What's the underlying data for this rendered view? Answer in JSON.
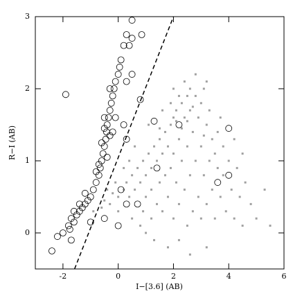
{
  "chart_data": {
    "type": "scatter",
    "xlabel": "I−[3.6] (AB)",
    "ylabel": "R−I (AB)",
    "xlim": [
      -3,
      6
    ],
    "ylim": [
      -0.5,
      3
    ],
    "xticks": [
      -2,
      0,
      2,
      4,
      6
    ],
    "yticks": [
      0,
      1,
      2,
      3
    ],
    "series": [
      {
        "marker": "dot",
        "color": "#a0a0a0",
        "x": [
          -0.9,
          -0.6,
          -0.5,
          -0.3,
          -0.2,
          0,
          0,
          0.2,
          0.3,
          0.4,
          0.5,
          0.6,
          0.7,
          0.8,
          0.9,
          1.0,
          1.0,
          1.1,
          1.2,
          1.2,
          1.3,
          1.4,
          1.4,
          1.5,
          1.5,
          1.6,
          1.6,
          1.7,
          1.7,
          1.8,
          1.8,
          1.9,
          1.9,
          2.0,
          2.0,
          2.0,
          2.1,
          2.1,
          2.2,
          2.2,
          2.3,
          2.3,
          2.4,
          2.4,
          2.5,
          2.5,
          2.5,
          2.6,
          2.6,
          2.7,
          2.7,
          2.8,
          2.8,
          2.9,
          2.9,
          3.0,
          3.0,
          3.0,
          3.1,
          3.1,
          3.2,
          3.2,
          3.3,
          3.3,
          3.4,
          3.4,
          3.5,
          3.5,
          3.6,
          3.6,
          3.7,
          3.8,
          3.8,
          3.9,
          4.0,
          4.1,
          4.2,
          4.3,
          4.4,
          4.5,
          4.6,
          4.8,
          5.0,
          5.5,
          5.3,
          0.5,
          0.8,
          1.0,
          1.3,
          1.8,
          2.2,
          2.6,
          3.2,
          0.2,
          0.6,
          1.1,
          1.6,
          2.0,
          2.4,
          2.8,
          3.2,
          2.2,
          2.6,
          1.9,
          3.1,
          2.3,
          1.5,
          0.4,
          -0.1,
          -0.4,
          2.1,
          2.5,
          2.7,
          4.2,
          4.5,
          0.9,
          1.2,
          3.7
        ],
        "values": [
          0.3,
          0.35,
          0.45,
          0.4,
          0.55,
          0.5,
          0.3,
          0.6,
          0.7,
          0.5,
          0.8,
          0.6,
          0.9,
          0.7,
          1.0,
          0.8,
          0.5,
          1.1,
          0.9,
          0.6,
          1.2,
          1.0,
          0.4,
          1.3,
          0.7,
          1.1,
          0.3,
          1.4,
          0.8,
          1.2,
          0.5,
          1.5,
          0.9,
          1.6,
          1.1,
          0.2,
          1.7,
          0.7,
          1.3,
          0.4,
          1.8,
          1.0,
          1.6,
          0.6,
          1.9,
          1.2,
          0.1,
          1.7,
          0.8,
          1.4,
          0.3,
          1.9,
          1.0,
          1.6,
          0.5,
          1.8,
          1.2,
          0.2,
          2.0,
          0.8,
          1.5,
          0.4,
          1.7,
          1.0,
          1.3,
          0.6,
          1.1,
          0.2,
          1.4,
          0.9,
          0.5,
          1.2,
          0.8,
          0.3,
          1.0,
          0.6,
          0.2,
          0.9,
          0.5,
          0.1,
          0.7,
          0.4,
          0.2,
          0.1,
          0.6,
          0.2,
          0.1,
          0.0,
          -0.1,
          -0.2,
          -0.1,
          -0.3,
          -0.2,
          0.9,
          1.2,
          1.5,
          1.7,
          2.0,
          2.1,
          2.2,
          2.1,
          1.9,
          2.0,
          1.8,
          1.35,
          1.45,
          1.45,
          1.0,
          0.7,
          0.6,
          1.55,
          1.55,
          1.75,
          1.3,
          1.1,
          0.3,
          0.2,
          1.6
        ]
      },
      {
        "marker": "circle-open",
        "color": "#000000",
        "x": [
          -1.8,
          -1.7,
          -1.6,
          -1.5,
          -1.4,
          -1.3,
          -1.2,
          -1.1,
          -1.0,
          -0.9,
          -0.8,
          -0.7,
          -0.65,
          -0.6,
          -0.55,
          -0.5,
          -0.45,
          -0.42,
          -0.4,
          -0.35,
          -0.3,
          -0.25,
          -0.2,
          -0.15,
          -0.1,
          0.0,
          0.05,
          0.1,
          -0.5,
          -0.3,
          -0.6,
          -0.7,
          -0.4,
          -0.8,
          -1.2,
          -1.4,
          -1.6,
          -1.75,
          -2.0,
          -2.4,
          -2.2,
          -1.9,
          0.3,
          0.5,
          0.2,
          0.4,
          0.5,
          0.3,
          0.8,
          0.2,
          0.3,
          1.3,
          2.2,
          4.0,
          3.6,
          4.0,
          1.4,
          0.3,
          0.7,
          0.1,
          -0.5,
          -1.0,
          -1.7,
          0.0,
          0.5,
          0.85,
          -0.1,
          -0.2,
          -0.5,
          -0.3
        ],
        "values": [
          0.1,
          0.2,
          0.15,
          0.25,
          0.3,
          0.35,
          0.4,
          0.45,
          0.5,
          0.6,
          0.7,
          0.8,
          0.9,
          1.0,
          1.1,
          1.2,
          1.3,
          1.4,
          1.5,
          1.6,
          1.7,
          1.8,
          1.9,
          2.0,
          2.1,
          2.2,
          2.3,
          2.4,
          1.45,
          1.35,
          1.25,
          0.95,
          1.05,
          0.85,
          0.55,
          0.4,
          0.3,
          0.05,
          0.0,
          -0.25,
          -0.05,
          1.92,
          2.75,
          2.7,
          2.6,
          2.6,
          2.2,
          2.1,
          1.85,
          1.5,
          1.3,
          1.55,
          1.5,
          1.45,
          0.7,
          0.8,
          0.9,
          0.4,
          0.4,
          0.6,
          0.2,
          0.15,
          -0.1,
          0.1,
          2.95,
          2.75,
          1.6,
          1.4,
          1.6,
          2.0
        ]
      },
      {
        "marker": "dashed-line",
        "color": "#000000",
        "x": [
          -1.58,
          2.0
        ],
        "values": [
          -0.5,
          3.0
        ]
      }
    ]
  }
}
